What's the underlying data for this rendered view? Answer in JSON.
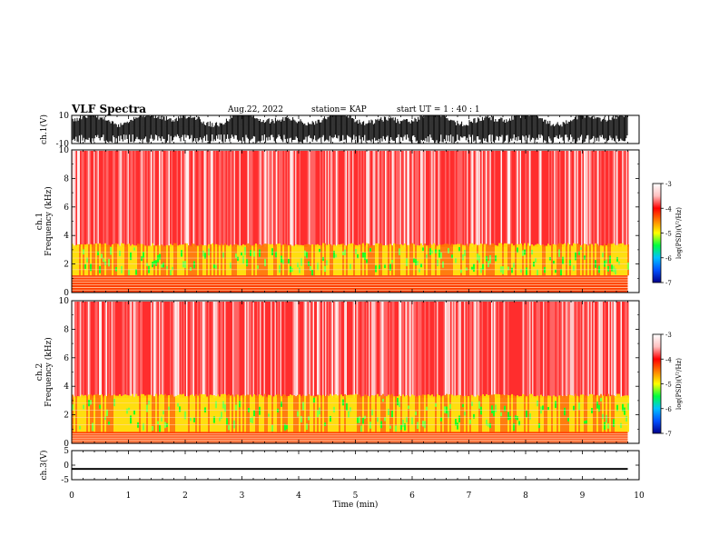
{
  "header": {
    "title": "VLF Spectra",
    "date": "Aug.22, 2022",
    "station": "station= KAP",
    "start": "start  UT =   1 : 40 : 1"
  },
  "colors": {
    "spectrogram_gradient": [
      "#00008b",
      "#0050ff",
      "#00c0ff",
      "#00ff40",
      "#ffff00",
      "#ff8000",
      "#ff0000",
      "#ffc0c0",
      "#ffffff"
    ]
  },
  "chart_data": [
    {
      "type": "line",
      "panel": "ch1-waveform",
      "ylabel": "ch.1(V)",
      "ylim": [
        -10,
        10
      ],
      "y_tick_labels": [
        "10",
        "-10"
      ],
      "x_range_min": [
        0,
        10
      ],
      "data_extent_min": 9.8,
      "description_values": {
        "typical_min_V": -10,
        "typical_max_V": 10
      }
    },
    {
      "type": "heatmap",
      "panel": "ch1-spectrogram",
      "ylabel": "ch.1\nFrequency  (kHz)",
      "ylim": [
        0,
        10
      ],
      "y_tick_labels": [
        "0",
        "2",
        "4",
        "6",
        "8",
        "10"
      ],
      "x_range_min": [
        0,
        10
      ],
      "data_extent_min": 9.8,
      "colorbar": {
        "label": "log(PSD)(V²/Hz)",
        "range": [
          -7,
          -3
        ],
        "tick_labels": [
          "-3",
          "-4",
          "-5",
          "-6",
          "-7"
        ]
      },
      "bands_kHz": {
        "green_yellow": [
          1.2,
          3.2
        ],
        "red": [
          3.2,
          10
        ]
      }
    },
    {
      "type": "heatmap",
      "panel": "ch2-spectrogram",
      "ylabel": "ch.2\nFrequency  (kHz)",
      "ylim": [
        0,
        10
      ],
      "y_tick_labels": [
        "0",
        "2",
        "4",
        "6",
        "8",
        "10"
      ],
      "x_range_min": [
        0,
        10
      ],
      "data_extent_min": 9.8,
      "colorbar": {
        "label": "log(PSD)(V²/Hz)",
        "range": [
          -7,
          -3
        ],
        "tick_labels": [
          "-3",
          "-4",
          "-5",
          "-6",
          "-7"
        ]
      },
      "bands_kHz": {
        "green_yellow": [
          0.8,
          3.2
        ],
        "red": [
          3.2,
          10
        ]
      }
    },
    {
      "type": "line",
      "panel": "ch3-waveform",
      "ylabel": "ch.3(V)",
      "ylim": [
        -5,
        5
      ],
      "y_tick_labels": [
        "5",
        "0",
        "-5"
      ],
      "x_range_min": [
        0,
        10
      ],
      "data_extent_min": 9.8,
      "description_values": {
        "centre_V": -1.3,
        "amplitude_V": 0.3
      }
    }
  ],
  "xaxis": {
    "label": "Time  (min)",
    "tick_labels": [
      "0",
      "1",
      "2",
      "3",
      "4",
      "5",
      "6",
      "7",
      "8",
      "9",
      "10"
    ]
  }
}
